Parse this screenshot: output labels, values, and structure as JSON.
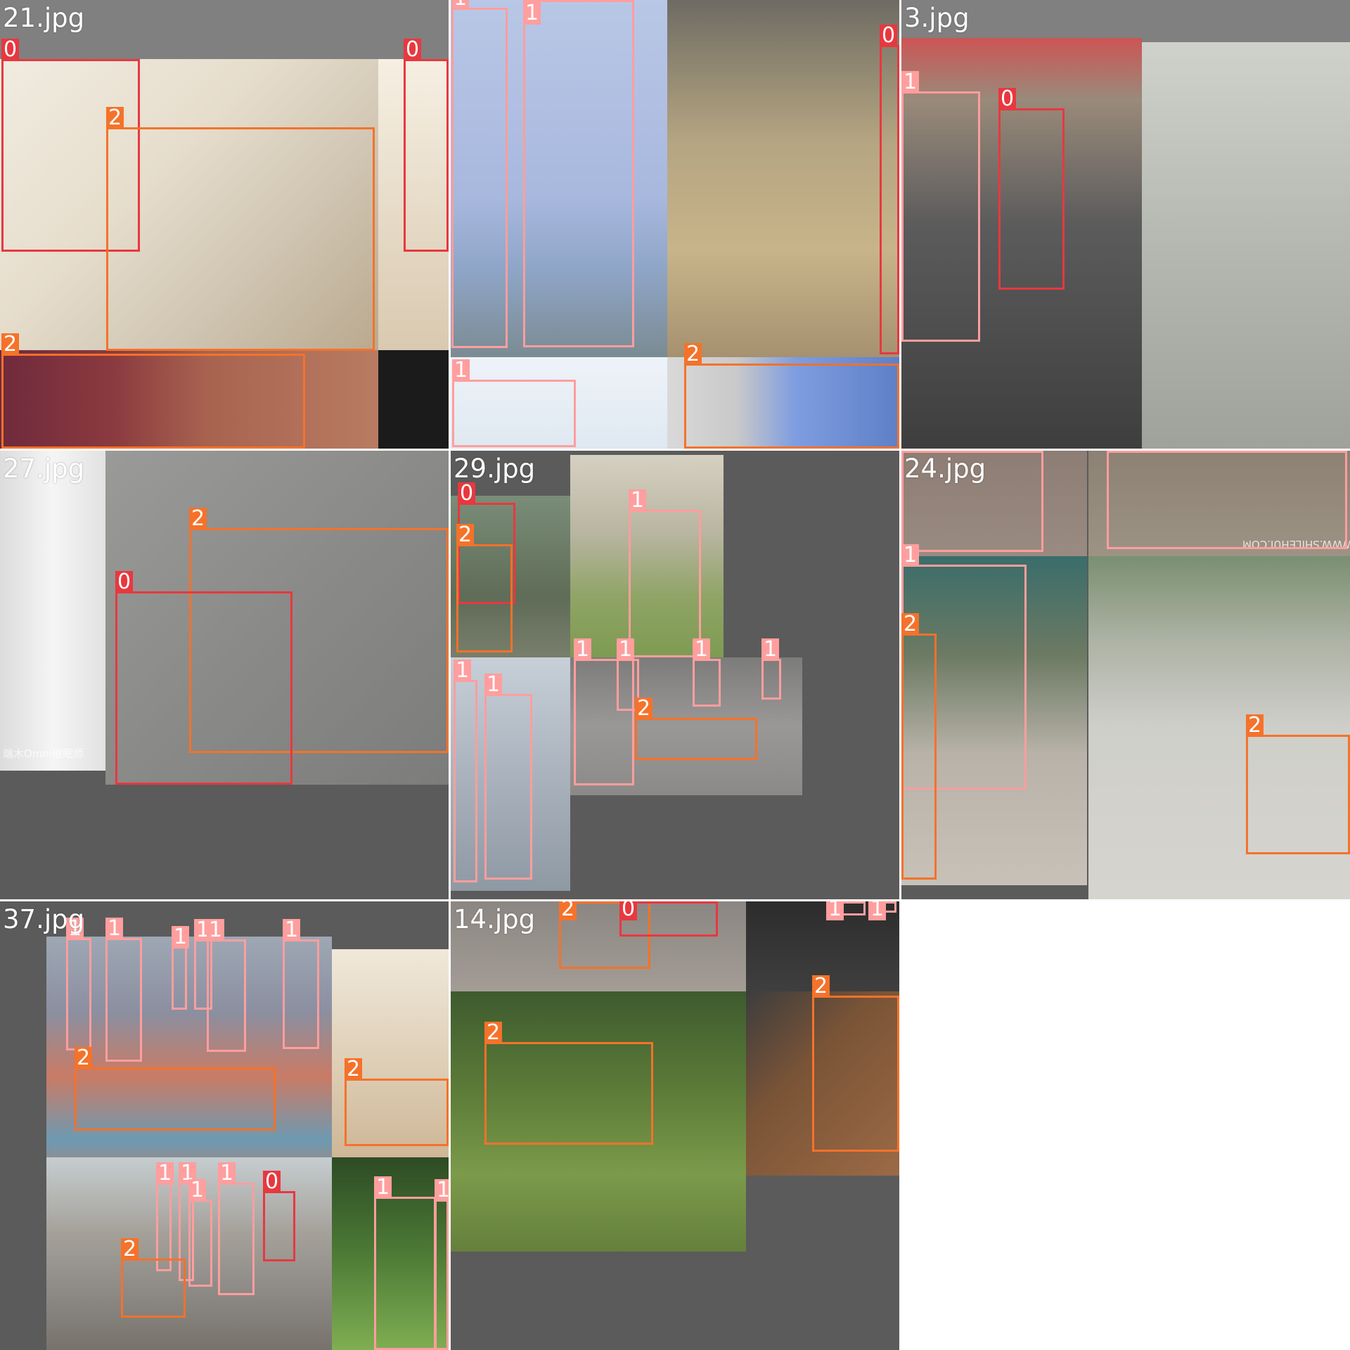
{
  "tiles": [
    {
      "label": "21.jpg"
    },
    {
      "label": "3.jpg"
    },
    {
      "label": "27.jpg"
    },
    {
      "label": "29.jpg"
    },
    {
      "label": "24.jpg"
    },
    {
      "label": "37.jpg"
    },
    {
      "label": "14.jpg"
    }
  ],
  "class_labels": {
    "c0": "0",
    "c1": "1",
    "c2": "2"
  },
  "class_colors": {
    "c0": "#e8383f",
    "c1": "#ff9e9e",
    "c2": "#f5722a"
  },
  "watermarks": {
    "t27": "端木Omni催眠师",
    "t24": "WWW.SHILEHUI.COM"
  }
}
